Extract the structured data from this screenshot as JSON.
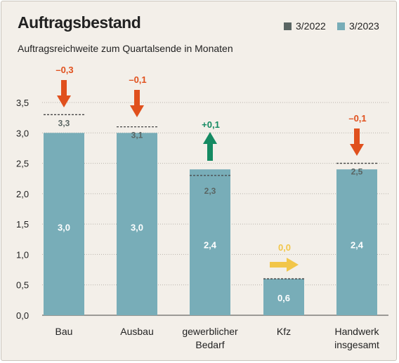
{
  "header": {
    "title": "Auftragsbestand",
    "subtitle": "Auftragsreichweite zum Quartalsende in Monaten"
  },
  "legend": [
    {
      "label": "3/2022",
      "color": "#5a6563"
    },
    {
      "label": "3/2023",
      "color": "#78adb8"
    }
  ],
  "colors": {
    "bar": "#78adb8",
    "grid": "#b8b2aa",
    "down": "#e0501d",
    "up": "#158a62",
    "flat": "#f2c649"
  },
  "chart_data": {
    "type": "bar",
    "ylim": [
      0,
      3.5
    ],
    "yticks": [
      "0,0",
      "0,5",
      "1,0",
      "1,5",
      "2,0",
      "2,5",
      "3,0",
      "3,5"
    ],
    "categories": [
      [
        "Bau"
      ],
      [
        "Ausbau"
      ],
      [
        "gewerblicher",
        "Bedarf"
      ],
      [
        "Kfz"
      ],
      [
        "Handwerk",
        "insgesamt"
      ]
    ],
    "series": [
      {
        "name": "3/2022",
        "values": [
          3.3,
          3.1,
          2.3,
          0.6,
          2.5
        ],
        "labels": [
          "3,3",
          "3,1",
          "2,3",
          "",
          "2,5"
        ]
      },
      {
        "name": "3/2023",
        "values": [
          3.0,
          3.0,
          2.4,
          0.6,
          2.4
        ],
        "labels": [
          "3,0",
          "3,0",
          "2,4",
          "0,6",
          "2,4"
        ]
      }
    ],
    "changes": [
      {
        "label": "–0,3",
        "direction": "down"
      },
      {
        "label": "–0,1",
        "direction": "down"
      },
      {
        "label": "+0,1",
        "direction": "up"
      },
      {
        "label": "0,0",
        "direction": "flat"
      },
      {
        "label": "–0,1",
        "direction": "down"
      }
    ]
  }
}
